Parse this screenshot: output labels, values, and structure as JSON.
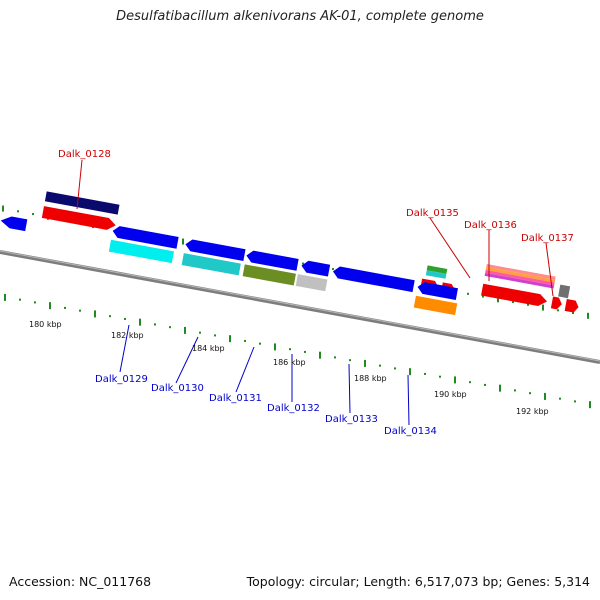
{
  "title": "Desulfatibacillum alkenivorans AK-01, complete genome",
  "footer": {
    "accession": "Accession: NC_011768",
    "stats": "Topology: circular; Length: 6,517,073 bp; Genes: 5,314"
  },
  "scale_labels": [
    "180 kbp",
    "182 kbp",
    "184 kbp",
    "186 kbp",
    "188 kbp",
    "190 kbp",
    "192 kbp"
  ],
  "gene_labels_forward": [
    "Dalk_0128",
    "Dalk_0135",
    "Dalk_0136",
    "Dalk_0137"
  ],
  "gene_labels_reverse": [
    "Dalk_0129",
    "Dalk_0130",
    "Dalk_0131",
    "Dalk_0132",
    "Dalk_0133",
    "Dalk_0134"
  ],
  "colors": {
    "forward_label": "#cc0000",
    "reverse_label": "#0000cc",
    "backbone": "#808080",
    "tick": "#1f8a1f",
    "cds_forward": "#ee0000",
    "cds_reverse": "#0000ee"
  }
}
